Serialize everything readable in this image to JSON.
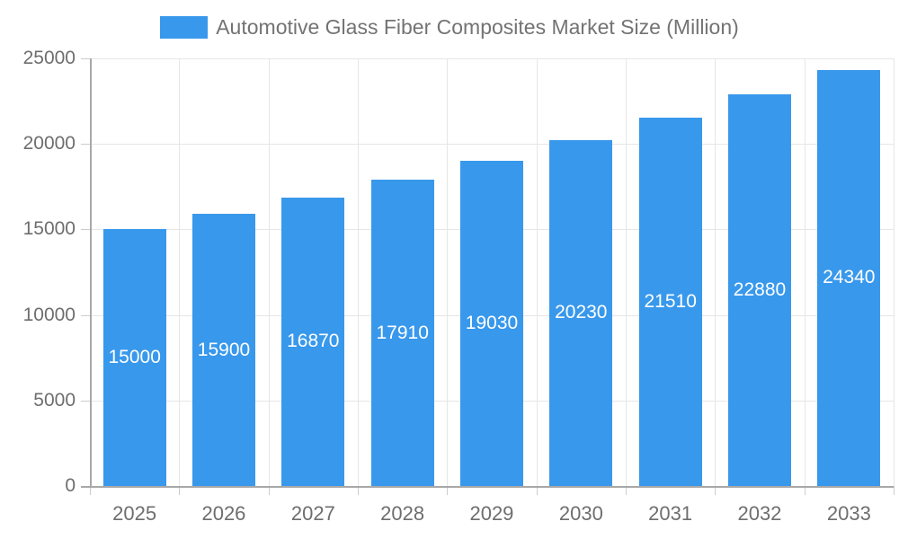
{
  "chart_data": {
    "type": "bar",
    "title": "Automotive Glass Fiber Composites Market Size (Million)",
    "legend": [
      "Automotive Glass Fiber Composites Market Size (Million)"
    ],
    "legend_position": "top",
    "categories": [
      "2025",
      "2026",
      "2027",
      "2028",
      "2029",
      "2030",
      "2031",
      "2032",
      "2033"
    ],
    "values": [
      15000,
      15900,
      16870,
      17910,
      19030,
      20230,
      21510,
      22880,
      24340
    ],
    "xlabel": "",
    "ylabel": "",
    "ylim": [
      0,
      25000
    ],
    "yticks": [
      0,
      5000,
      10000,
      15000,
      20000,
      25000
    ],
    "grid": true,
    "bar_label_style": "inside-center-white",
    "colors": {
      "bar": "#3898EC",
      "grid": "#E6E6E6",
      "axis": "#A8A8A8",
      "tick": "#CCCCCC",
      "axis_text": "#6E6E6E",
      "legend_text": "#737373",
      "bar_label": "#FFFFFF",
      "background": "#FFFFFF"
    }
  }
}
